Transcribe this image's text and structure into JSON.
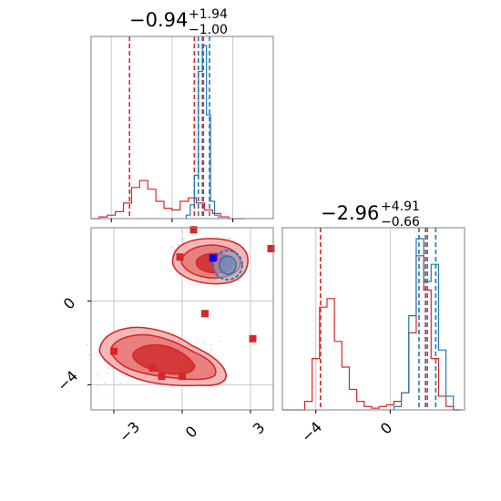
{
  "colors": {
    "red": "#d62728",
    "blue": "#1f77b4",
    "red_fill_light": "#f4b9b9",
    "red_fill_mid": "#e57373",
    "red_fill_dark": "#d32f2f",
    "blue_fill": "#8fb7dd",
    "grid": "#c8c8c8",
    "frame": "#7f7f7f"
  },
  "chart_data": [
    {
      "type": "line",
      "subtype": "histogram",
      "panel": "marginal-x",
      "title_value": "−0.94",
      "title_plus": "+1.94",
      "title_minus": "−1.00",
      "x_range": [
        -4.0,
        5.0
      ],
      "grid": true,
      "series": [
        {
          "color": "red",
          "x": [
            -3.8,
            -3.4,
            -3.0,
            -2.6,
            -2.2,
            -1.8,
            -1.4,
            -1.0,
            -0.6,
            -0.2,
            0.2,
            0.6,
            1.0,
            1.4,
            1.8,
            2.2,
            2.6,
            3.0,
            3.4
          ],
          "values": [
            0.0,
            0.01,
            0.02,
            0.04,
            0.09,
            0.18,
            0.22,
            0.17,
            0.1,
            0.06,
            0.05,
            0.1,
            0.12,
            0.09,
            0.05,
            0.03,
            0.01,
            0.0,
            0.0
          ],
          "dashed_lines": [
            -2.1,
            1.1,
            1.5
          ]
        },
        {
          "color": "blue",
          "x": [
            0.8,
            1.0,
            1.2,
            1.4,
            1.6,
            1.8,
            2.0,
            2.2
          ],
          "values": [
            0.02,
            0.08,
            0.25,
            0.85,
            1.0,
            0.6,
            0.1,
            0.02
          ],
          "dashed_lines": [
            1.3,
            1.55,
            1.85
          ]
        }
      ]
    },
    {
      "type": "scatter",
      "subtype": "2d-density-contour",
      "panel": "joint",
      "x_ticks": [
        "−3",
        "0",
        "3"
      ],
      "y_ticks": [
        "0",
        "−4"
      ],
      "x_range": [
        -4.0,
        4.0
      ],
      "y_range": [
        -5.2,
        3.5
      ],
      "grid": true,
      "red_markers": [
        {
          "x": 0.5,
          "y": 3.4
        },
        {
          "x": -0.1,
          "y": 2.1
        },
        {
          "x": 1.0,
          "y": -0.6
        },
        {
          "x": 3.1,
          "y": -1.8
        },
        {
          "x": -3.0,
          "y": -2.4
        },
        {
          "x": -1.3,
          "y": -3.2
        },
        {
          "x": -0.9,
          "y": -3.6
        },
        {
          "x": 0.0,
          "y": -3.6
        },
        {
          "x": 1.4,
          "y": 2.1
        },
        {
          "x": 3.9,
          "y": 2.5
        }
      ],
      "blue_markers": [
        {
          "x": 1.35,
          "y": 2.05
        }
      ]
    },
    {
      "type": "line",
      "subtype": "histogram",
      "panel": "marginal-y",
      "title_value": "−2.96",
      "title_plus": "+4.91",
      "title_minus": "−0.66",
      "x_ticks": [
        "−4",
        "0"
      ],
      "x_range": [
        -5.8,
        4.0
      ],
      "grid": true,
      "series": [
        {
          "color": "red",
          "x": [
            -5.6,
            -5.2,
            -4.8,
            -4.4,
            -4.0,
            -3.6,
            -3.2,
            -2.8,
            -2.4,
            -2.0,
            -1.6,
            -1.2,
            -0.8,
            -0.4,
            0.0,
            0.4,
            0.8,
            1.2,
            1.6,
            2.0,
            2.4,
            2.8,
            3.2,
            3.6
          ],
          "values": [
            0.0,
            0.0,
            0.0,
            0.05,
            0.3,
            0.6,
            0.65,
            0.4,
            0.25,
            0.12,
            0.05,
            0.02,
            0.01,
            0.02,
            0.03,
            0.05,
            0.1,
            0.45,
            0.9,
            0.7,
            0.3,
            0.08,
            0.02,
            0.0
          ],
          "dashed_lines": [
            -3.75,
            1.9
          ]
        },
        {
          "color": "blue",
          "x": [
            0.4,
            0.8,
            1.2,
            1.6,
            2.0,
            2.4,
            2.8,
            3.2,
            3.6
          ],
          "values": [
            0.02,
            0.1,
            0.55,
            1.0,
            0.75,
            0.85,
            0.35,
            0.08,
            0.0
          ],
          "dashed_lines": [
            1.55,
            2.0,
            2.45
          ]
        }
      ]
    }
  ]
}
